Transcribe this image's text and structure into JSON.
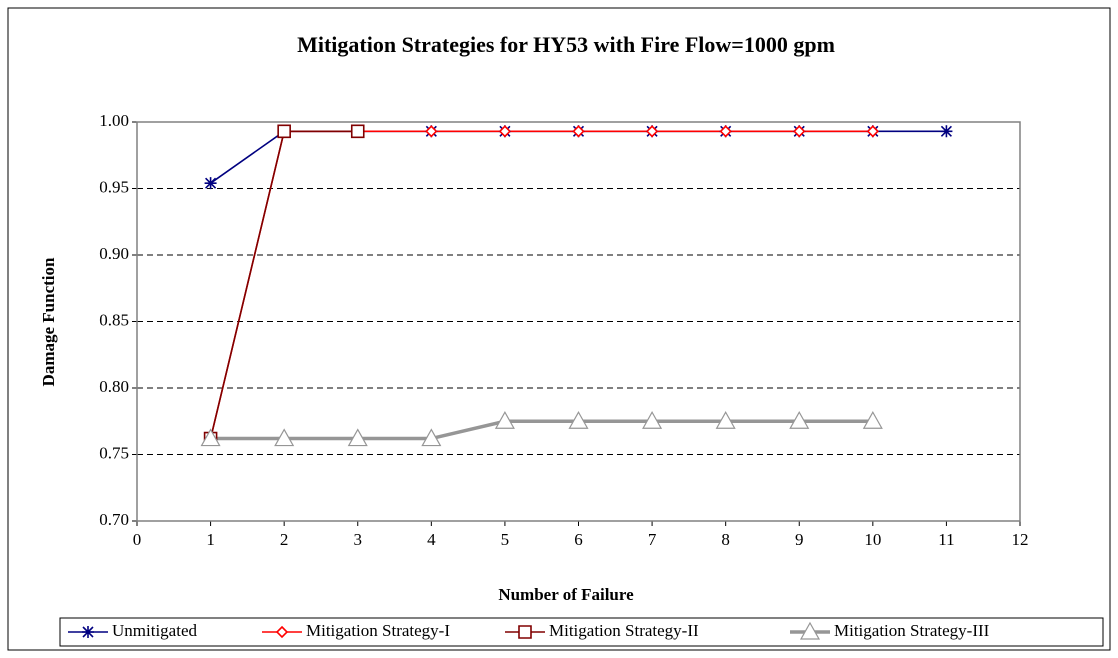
{
  "chart_data": {
    "type": "line",
    "title": "Mitigation Strategies for HY53 with Fire Flow=1000 gpm",
    "x_label": "Number of Failure",
    "y_label": "Damage Function",
    "xlim": [
      0,
      12
    ],
    "xticks": [
      0,
      1,
      2,
      3,
      4,
      5,
      6,
      7,
      8,
      9,
      10,
      11,
      12
    ],
    "ylim": [
      0.7,
      1.0
    ],
    "yticks": [
      {
        "value": 0.7,
        "label": "0.70"
      },
      0.75,
      {
        "value": 0.8,
        "label": "0.80"
      },
      0.85,
      {
        "value": 0.9,
        "label": "0.90"
      },
      0.95,
      {
        "value": 1.0,
        "label": "1.00"
      }
    ],
    "grid": true,
    "legend": "bottom",
    "series": [
      {
        "name": "Unmitigated",
        "color": "#000080",
        "marker": "star",
        "x": [
          1,
          2,
          3,
          4,
          5,
          6,
          7,
          8,
          9,
          10,
          11
        ],
        "values": [
          0.954,
          0.993,
          0.993,
          0.993,
          0.993,
          0.993,
          0.993,
          0.993,
          0.993,
          0.993,
          0.993
        ]
      },
      {
        "name": "Mitigation Strategy-I",
        "color": "#ff0000",
        "marker": "diamond",
        "x": [
          1,
          2,
          3,
          4,
          5,
          6,
          7,
          8,
          9,
          10
        ],
        "values": [
          0.762,
          0.993,
          0.993,
          0.993,
          0.993,
          0.993,
          0.993,
          0.993,
          0.993,
          0.993
        ]
      },
      {
        "name": "Mitigation Strategy-II",
        "color": "#800000",
        "marker": "square",
        "x": [
          1,
          2,
          3
        ],
        "values": [
          0.762,
          0.993,
          0.993
        ]
      },
      {
        "name": "Mitigation Strategy-III",
        "color": "#969696",
        "marker": "triangle",
        "x": [
          1,
          2,
          3,
          4,
          5,
          6,
          7,
          8,
          9,
          10
        ],
        "values": [
          0.762,
          0.762,
          0.762,
          0.762,
          0.775,
          0.775,
          0.775,
          0.775,
          0.775,
          0.775
        ]
      }
    ]
  }
}
